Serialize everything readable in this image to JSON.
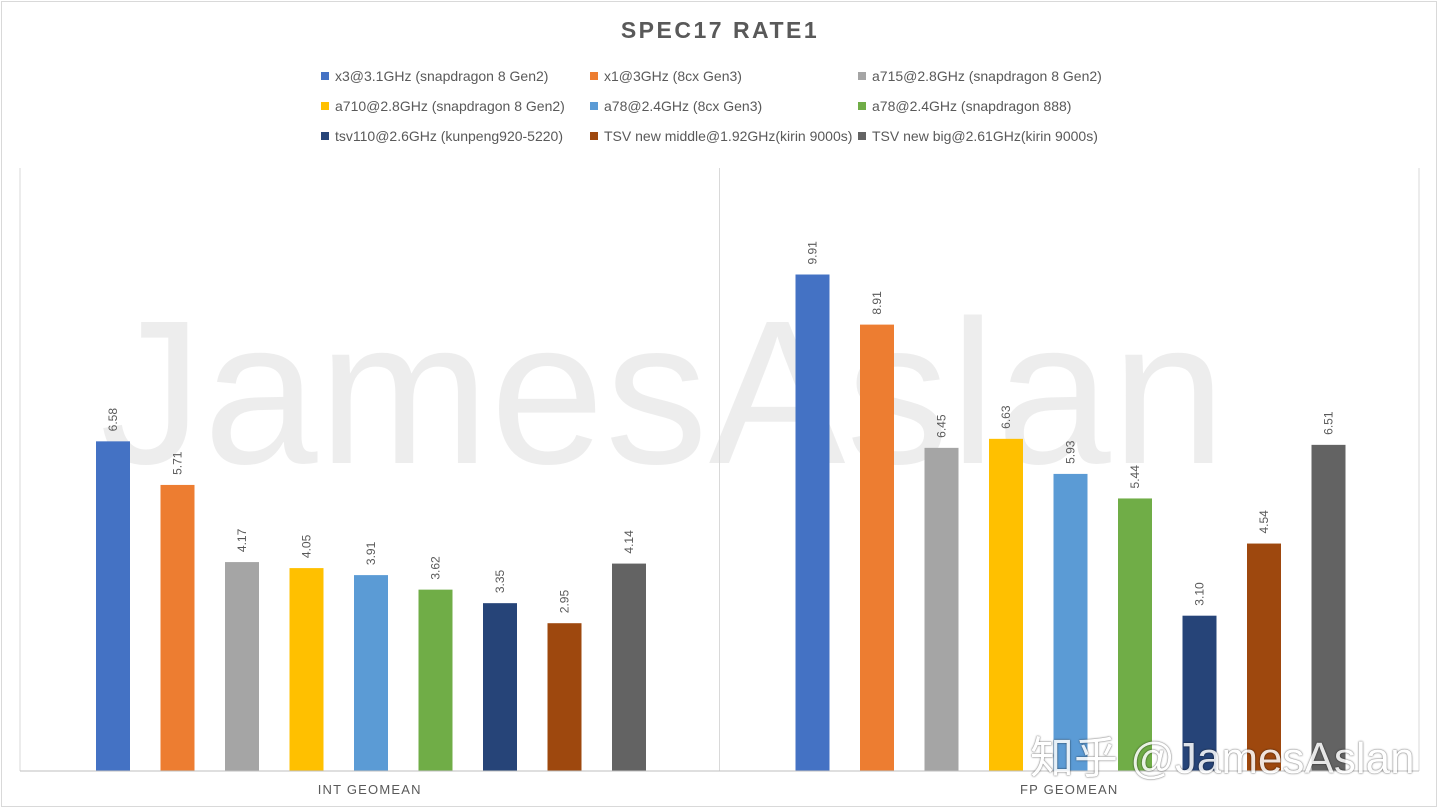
{
  "chart_data": {
    "type": "bar",
    "title": "SPEC17 RATE1",
    "categories": [
      "INT GEOMEAN",
      "FP GEOMEAN"
    ],
    "series": [
      {
        "name": "x3@3.1GHz (snapdragon 8 Gen2)",
        "color": "#4472c4",
        "values": [
          6.58,
          9.91
        ]
      },
      {
        "name": "x1@3GHz (8cx Gen3)",
        "color": "#ed7d31",
        "values": [
          5.71,
          8.91
        ]
      },
      {
        "name": "a715@2.8GHz (snapdragon 8 Gen2)",
        "color": "#a5a5a5",
        "values": [
          4.17,
          6.45
        ]
      },
      {
        "name": "a710@2.8GHz (snapdragon 8 Gen2)",
        "color": "#ffc000",
        "values": [
          4.05,
          6.63
        ]
      },
      {
        "name": "a78@2.4GHz (8cx Gen3)",
        "color": "#5b9bd5",
        "values": [
          3.91,
          5.93
        ]
      },
      {
        "name": "a78@2.4GHz (snapdragon 888)",
        "color": "#70ad47",
        "values": [
          3.62,
          5.44
        ]
      },
      {
        "name": "tsv110@2.6GHz (kunpeng920-5220)",
        "color": "#264478",
        "values": [
          3.35,
          3.1
        ]
      },
      {
        "name": "TSV new middle@1.92GHz(kirin 9000s)",
        "color": "#9e480e",
        "values": [
          2.95,
          4.54
        ]
      },
      {
        "name": "TSV new big@2.61GHz(kirin 9000s)",
        "color": "#636363",
        "values": [
          4.14,
          6.51
        ]
      }
    ],
    "ylim": [
      0,
      12
    ],
    "grid": false,
    "legend_position": "top"
  },
  "watermark": {
    "text": "JamesAslan",
    "corner_text": "知乎 @JamesAslan"
  }
}
